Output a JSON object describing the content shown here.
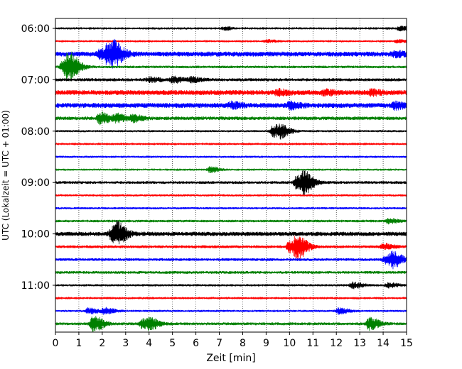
{
  "chart_data": {
    "type": "line",
    "title": "",
    "xlabel": "Zeit  [min]",
    "ylabel": "UTC (Lokalzeit = UTC + 01:00)",
    "xlim": [
      0,
      15
    ],
    "x_ticks": [
      "0",
      "1",
      "2",
      "3",
      "4",
      "5",
      "6",
      "7",
      "8",
      "9",
      "10",
      "11",
      "12",
      "13",
      "14",
      "15"
    ],
    "y_tick_labels": [
      {
        "row": 0,
        "label": "06:00"
      },
      {
        "row": 4,
        "label": "07:00"
      },
      {
        "row": 8,
        "label": "08:00"
      },
      {
        "row": 12,
        "label": "09:00"
      },
      {
        "row": 16,
        "label": "10:00"
      },
      {
        "row": 20,
        "label": "11:00"
      }
    ],
    "grid": {
      "x": true,
      "style": "dotted"
    },
    "row_colors": [
      "#000000",
      "#ff0000",
      "#0000ff",
      "#008000"
    ],
    "rows": [
      {
        "start": "06:00",
        "base": 1.0,
        "events": [
          {
            "t": 7.2,
            "amp": 2.5
          },
          {
            "t": 14.7,
            "amp": 3.5
          }
        ]
      },
      {
        "start": "06:15",
        "base": 1.2,
        "events": [
          {
            "t": 9.0,
            "amp": 2.0
          },
          {
            "t": 14.6,
            "amp": 2.0
          }
        ]
      },
      {
        "start": "06:30",
        "base": 3.5,
        "events": [
          {
            "t": 1.9,
            "amp": 5
          },
          {
            "t": 2.2,
            "amp": 10
          },
          {
            "t": 2.5,
            "amp": 11
          },
          {
            "t": 14.5,
            "amp": 3
          }
        ]
      },
      {
        "start": "06:45",
        "base": 1.8,
        "events": [
          {
            "t": 0.3,
            "amp": 7
          },
          {
            "t": 0.5,
            "amp": 12
          },
          {
            "t": 0.7,
            "amp": 6
          }
        ]
      },
      {
        "start": "07:00",
        "base": 2.2,
        "events": [
          {
            "t": 4.0,
            "amp": 3
          },
          {
            "t": 5.0,
            "amp": 4
          },
          {
            "t": 5.8,
            "amp": 3
          }
        ]
      },
      {
        "start": "07:15",
        "base": 3.5,
        "events": [
          {
            "t": 9.5,
            "amp": 3
          },
          {
            "t": 11.5,
            "amp": 3
          },
          {
            "t": 13.5,
            "amp": 3
          }
        ]
      },
      {
        "start": "07:30",
        "base": 3.5,
        "events": [
          {
            "t": 7.5,
            "amp": 4
          },
          {
            "t": 10.0,
            "amp": 4
          },
          {
            "t": 14.5,
            "amp": 4
          }
        ]
      },
      {
        "start": "07:45",
        "base": 2.5,
        "events": [
          {
            "t": 1.9,
            "amp": 8
          },
          {
            "t": 2.6,
            "amp": 5
          },
          {
            "t": 3.3,
            "amp": 4
          }
        ]
      },
      {
        "start": "08:00",
        "base": 1.5,
        "events": [
          {
            "t": 9.3,
            "amp": 8
          },
          {
            "t": 9.6,
            "amp": 6
          }
        ]
      },
      {
        "start": "08:15",
        "base": 1.0,
        "events": []
      },
      {
        "start": "08:30",
        "base": 1.5,
        "events": []
      },
      {
        "start": "08:45",
        "base": 1.2,
        "events": [
          {
            "t": 6.6,
            "amp": 4
          }
        ]
      },
      {
        "start": "09:00",
        "base": 2.0,
        "events": [
          {
            "t": 10.3,
            "amp": 9
          },
          {
            "t": 10.6,
            "amp": 12
          }
        ]
      },
      {
        "start": "09:15",
        "base": 1.5,
        "events": []
      },
      {
        "start": "09:30",
        "base": 1.5,
        "events": []
      },
      {
        "start": "09:45",
        "base": 1.8,
        "events": [
          {
            "t": 14.2,
            "amp": 3
          }
        ]
      },
      {
        "start": "10:00",
        "base": 3.0,
        "events": [
          {
            "t": 2.4,
            "amp": 8
          },
          {
            "t": 2.6,
            "amp": 10
          }
        ]
      },
      {
        "start": "10:15",
        "base": 2.0,
        "events": [
          {
            "t": 10.0,
            "amp": 8
          },
          {
            "t": 10.3,
            "amp": 15
          },
          {
            "t": 14.0,
            "amp": 4
          }
        ]
      },
      {
        "start": "10:30",
        "base": 2.0,
        "events": [
          {
            "t": 14.1,
            "amp": 6
          },
          {
            "t": 14.4,
            "amp": 8
          }
        ]
      },
      {
        "start": "10:45",
        "base": 2.0,
        "events": []
      },
      {
        "start": "11:00",
        "base": 1.6,
        "events": [
          {
            "t": 12.7,
            "amp": 4
          },
          {
            "t": 14.2,
            "amp": 3
          }
        ]
      },
      {
        "start": "11:15",
        "base": 1.0,
        "events": []
      },
      {
        "start": "11:30",
        "base": 1.5,
        "events": [
          {
            "t": 1.4,
            "amp": 4
          },
          {
            "t": 2.1,
            "amp": 4
          },
          {
            "t": 12.1,
            "amp": 4
          }
        ]
      },
      {
        "start": "11:45",
        "base": 2.0,
        "events": [
          {
            "t": 1.6,
            "amp": 11
          },
          {
            "t": 3.7,
            "amp": 6
          },
          {
            "t": 4.0,
            "amp": 6
          },
          {
            "t": 13.4,
            "amp": 8
          }
        ]
      }
    ]
  }
}
